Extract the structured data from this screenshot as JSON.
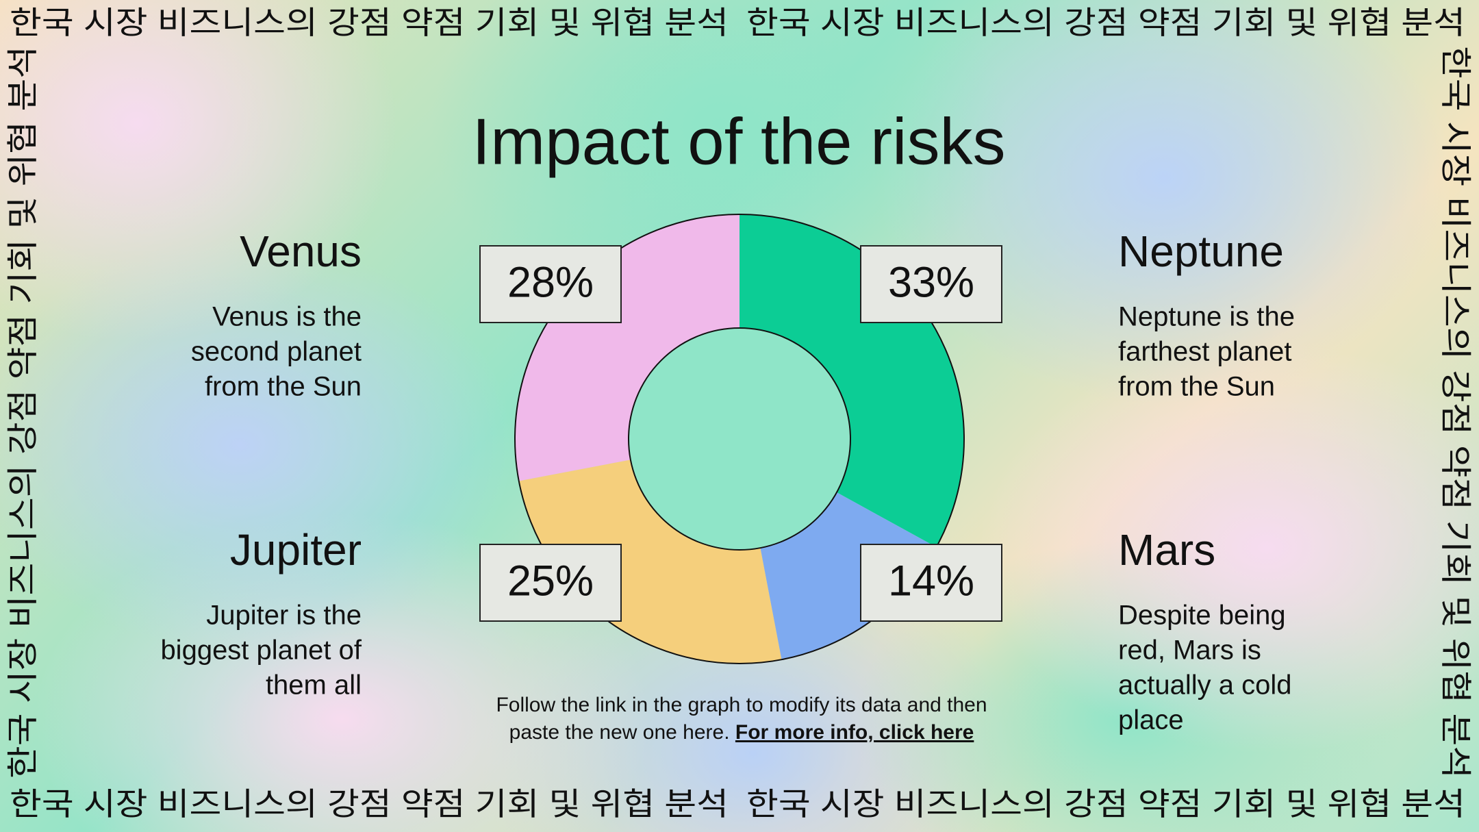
{
  "border_text": "한국 시장 비즈니스의 강점 약점 기회 및 위협 분석",
  "chart_data": {
    "type": "donut",
    "title": "Impact of the risks",
    "categories": [
      "Neptune",
      "Mars",
      "Jupiter",
      "Venus"
    ],
    "values": [
      33,
      14,
      25,
      28
    ],
    "value_labels": [
      "33%",
      "14%",
      "25%",
      "28%"
    ],
    "colors": [
      "#0ccd95",
      "#7eaaf0",
      "#f5cf7c",
      "#f0b9ea"
    ],
    "descriptions": [
      [
        "Neptune is the",
        "farthest planet",
        "from the Sun"
      ],
      [
        "Despite being",
        "red, Mars is",
        "actually a cold",
        "place"
      ],
      [
        "Jupiter is the",
        "biggest planet of",
        "them all"
      ],
      [
        "Venus is the",
        "second planet",
        "from the Sun"
      ]
    ]
  },
  "footer": {
    "lines": [
      "Follow the link in the graph to modify its data and then",
      "paste the new one here."
    ],
    "link": "For more info, click here"
  }
}
